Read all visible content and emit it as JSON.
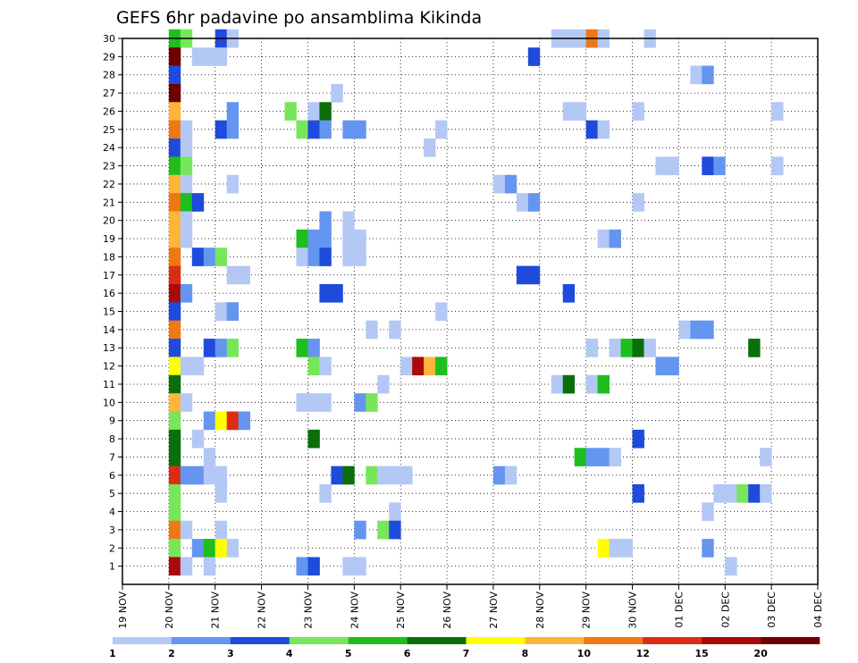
{
  "chart_data": {
    "type": "heatmap",
    "title": "GEFS 6hr padavine po ansamblima Kikinda",
    "xlabel": "",
    "ylabel": "",
    "x_tick_labels": [
      "19 NOV",
      "20 NOV",
      "21 NOV",
      "22 NOV",
      "23 NOV",
      "24 NOV",
      "25 NOV",
      "26 NOV",
      "27 NOV",
      "28 NOV",
      "29 NOV",
      "30 NOV",
      "01 DEC",
      "02 DEC",
      "03 DEC",
      "04 DEC"
    ],
    "x_range_days": [
      0,
      15
    ],
    "steps_per_day": 4,
    "y_tick_labels": [
      "1",
      "2",
      "3",
      "4",
      "5",
      "6",
      "7",
      "8",
      "9",
      "10",
      "11",
      "12",
      "13",
      "14",
      "15",
      "16",
      "17",
      "18",
      "19",
      "20",
      "21",
      "22",
      "23",
      "24",
      "25",
      "26",
      "27",
      "28",
      "29",
      "30"
    ],
    "y_range": [
      0,
      30
    ],
    "grid": true,
    "colorbar": {
      "tick_labels": [
        "1",
        "2",
        "3",
        "4",
        "5",
        "6",
        "7",
        "8",
        "10",
        "12",
        "15",
        "20"
      ],
      "colors": [
        "#b4c8f5",
        "#6495f0",
        "#1e4bdc",
        "#78e65a",
        "#1ebe1e",
        "#0a6e0a",
        "#ffff00",
        "#ffb43c",
        "#f07814",
        "#dc2d14",
        "#aa0a0a",
        "#6e0000"
      ]
    },
    "levels_note": "cells list [ensemble_member, time_step_index, colour_class_index]",
    "cells": [
      [
        30,
        4,
        5
      ],
      [
        30,
        5,
        4
      ],
      [
        30,
        8,
        3
      ],
      [
        30,
        9,
        1
      ],
      [
        30,
        37,
        1
      ],
      [
        30,
        38,
        1
      ],
      [
        30,
        39,
        1
      ],
      [
        30,
        40,
        9
      ],
      [
        30,
        41,
        1
      ],
      [
        30,
        45,
        1
      ],
      [
        29,
        4,
        12
      ],
      [
        29,
        6,
        1
      ],
      [
        29,
        7,
        1
      ],
      [
        29,
        8,
        1
      ],
      [
        29,
        35,
        3
      ],
      [
        28,
        4,
        3
      ],
      [
        28,
        49,
        1
      ],
      [
        28,
        50,
        2
      ],
      [
        27,
        4,
        12
      ],
      [
        27,
        18,
        1
      ],
      [
        26,
        4,
        8
      ],
      [
        26,
        9,
        2
      ],
      [
        26,
        14,
        4
      ],
      [
        26,
        16,
        1
      ],
      [
        26,
        17,
        6
      ],
      [
        26,
        38,
        1
      ],
      [
        26,
        39,
        1
      ],
      [
        26,
        44,
        1
      ],
      [
        26,
        56,
        1
      ],
      [
        25,
        4,
        9
      ],
      [
        25,
        5,
        1
      ],
      [
        25,
        8,
        3
      ],
      [
        25,
        9,
        2
      ],
      [
        25,
        15,
        4
      ],
      [
        25,
        16,
        3
      ],
      [
        25,
        17,
        2
      ],
      [
        25,
        19,
        2
      ],
      [
        25,
        20,
        2
      ],
      [
        25,
        27,
        1
      ],
      [
        25,
        40,
        3
      ],
      [
        25,
        41,
        1
      ],
      [
        24,
        4,
        3
      ],
      [
        24,
        5,
        1
      ],
      [
        24,
        26,
        1
      ],
      [
        23,
        4,
        5
      ],
      [
        23,
        5,
        4
      ],
      [
        23,
        46,
        1
      ],
      [
        23,
        47,
        1
      ],
      [
        23,
        50,
        3
      ],
      [
        23,
        51,
        2
      ],
      [
        23,
        56,
        1
      ],
      [
        22,
        4,
        8
      ],
      [
        22,
        5,
        1
      ],
      [
        22,
        9,
        1
      ],
      [
        22,
        32,
        1
      ],
      [
        22,
        33,
        2
      ],
      [
        21,
        4,
        9
      ],
      [
        21,
        5,
        5
      ],
      [
        21,
        6,
        3
      ],
      [
        21,
        34,
        1
      ],
      [
        21,
        35,
        2
      ],
      [
        21,
        44,
        1
      ],
      [
        20,
        4,
        8
      ],
      [
        20,
        5,
        1
      ],
      [
        20,
        17,
        2
      ],
      [
        20,
        19,
        1
      ],
      [
        19,
        4,
        8
      ],
      [
        19,
        5,
        1
      ],
      [
        19,
        15,
        5
      ],
      [
        19,
        16,
        2
      ],
      [
        19,
        17,
        2
      ],
      [
        19,
        19,
        1
      ],
      [
        19,
        20,
        1
      ],
      [
        19,
        41,
        1
      ],
      [
        19,
        42,
        2
      ],
      [
        18,
        4,
        9
      ],
      [
        18,
        6,
        3
      ],
      [
        18,
        7,
        2
      ],
      [
        18,
        8,
        4
      ],
      [
        18,
        15,
        1
      ],
      [
        18,
        16,
        2
      ],
      [
        18,
        17,
        3
      ],
      [
        18,
        19,
        1
      ],
      [
        18,
        20,
        1
      ],
      [
        17,
        4,
        10
      ],
      [
        17,
        9,
        1
      ],
      [
        17,
        10,
        1
      ],
      [
        17,
        34,
        3
      ],
      [
        17,
        35,
        3
      ],
      [
        16,
        4,
        11
      ],
      [
        16,
        5,
        2
      ],
      [
        16,
        17,
        3
      ],
      [
        16,
        18,
        3
      ],
      [
        16,
        38,
        3
      ],
      [
        15,
        4,
        3
      ],
      [
        15,
        8,
        1
      ],
      [
        15,
        9,
        2
      ],
      [
        15,
        27,
        1
      ],
      [
        14,
        4,
        9
      ],
      [
        14,
        21,
        1
      ],
      [
        14,
        23,
        1
      ],
      [
        14,
        48,
        1
      ],
      [
        14,
        49,
        2
      ],
      [
        14,
        50,
        2
      ],
      [
        13,
        4,
        3
      ],
      [
        13,
        7,
        3
      ],
      [
        13,
        8,
        2
      ],
      [
        13,
        9,
        4
      ],
      [
        13,
        15,
        5
      ],
      [
        13,
        16,
        2
      ],
      [
        13,
        40,
        1
      ],
      [
        13,
        42,
        1
      ],
      [
        13,
        43,
        5
      ],
      [
        13,
        44,
        6
      ],
      [
        13,
        45,
        1
      ],
      [
        13,
        54,
        6
      ],
      [
        12,
        4,
        7
      ],
      [
        12,
        5,
        1
      ],
      [
        12,
        6,
        1
      ],
      [
        12,
        16,
        4
      ],
      [
        12,
        17,
        1
      ],
      [
        12,
        24,
        1
      ],
      [
        12,
        25,
        11
      ],
      [
        12,
        26,
        8
      ],
      [
        12,
        27,
        5
      ],
      [
        12,
        46,
        2
      ],
      [
        12,
        47,
        2
      ],
      [
        11,
        4,
        6
      ],
      [
        11,
        22,
        1
      ],
      [
        11,
        37,
        1
      ],
      [
        11,
        38,
        6
      ],
      [
        11,
        40,
        1
      ],
      [
        11,
        41,
        5
      ],
      [
        10,
        4,
        8
      ],
      [
        10,
        5,
        1
      ],
      [
        10,
        15,
        1
      ],
      [
        10,
        16,
        1
      ],
      [
        10,
        17,
        1
      ],
      [
        10,
        20,
        2
      ],
      [
        10,
        21,
        4
      ],
      [
        9,
        4,
        4
      ],
      [
        9,
        7,
        2
      ],
      [
        9,
        8,
        7
      ],
      [
        9,
        9,
        10
      ],
      [
        9,
        10,
        2
      ],
      [
        8,
        4,
        6
      ],
      [
        8,
        6,
        1
      ],
      [
        8,
        16,
        6
      ],
      [
        8,
        44,
        3
      ],
      [
        7,
        4,
        6
      ],
      [
        7,
        7,
        1
      ],
      [
        7,
        39,
        5
      ],
      [
        7,
        40,
        2
      ],
      [
        7,
        41,
        2
      ],
      [
        7,
        42,
        1
      ],
      [
        7,
        55,
        1
      ],
      [
        6,
        4,
        10
      ],
      [
        6,
        5,
        2
      ],
      [
        6,
        6,
        2
      ],
      [
        6,
        7,
        1
      ],
      [
        6,
        8,
        1
      ],
      [
        6,
        18,
        3
      ],
      [
        6,
        19,
        6
      ],
      [
        6,
        21,
        4
      ],
      [
        6,
        22,
        1
      ],
      [
        6,
        23,
        1
      ],
      [
        6,
        24,
        1
      ],
      [
        6,
        32,
        2
      ],
      [
        6,
        33,
        1
      ],
      [
        5,
        4,
        4
      ],
      [
        5,
        8,
        1
      ],
      [
        5,
        17,
        1
      ],
      [
        5,
        44,
        3
      ],
      [
        5,
        51,
        1
      ],
      [
        5,
        52,
        1
      ],
      [
        5,
        53,
        4
      ],
      [
        5,
        54,
        3
      ],
      [
        5,
        55,
        1
      ],
      [
        4,
        4,
        4
      ],
      [
        4,
        23,
        1
      ],
      [
        4,
        50,
        1
      ],
      [
        3,
        4,
        9
      ],
      [
        3,
        5,
        1
      ],
      [
        3,
        8,
        1
      ],
      [
        3,
        20,
        2
      ],
      [
        3,
        22,
        4
      ],
      [
        3,
        23,
        3
      ],
      [
        2,
        4,
        4
      ],
      [
        2,
        6,
        2
      ],
      [
        2,
        7,
        5
      ],
      [
        2,
        8,
        7
      ],
      [
        2,
        9,
        1
      ],
      [
        2,
        41,
        7
      ],
      [
        2,
        42,
        1
      ],
      [
        2,
        43,
        1
      ],
      [
        2,
        50,
        2
      ],
      [
        1,
        4,
        11
      ],
      [
        1,
        5,
        1
      ],
      [
        1,
        7,
        1
      ],
      [
        1,
        15,
        2
      ],
      [
        1,
        16,
        3
      ],
      [
        1,
        19,
        1
      ],
      [
        1,
        20,
        1
      ],
      [
        1,
        52,
        1
      ]
    ]
  }
}
